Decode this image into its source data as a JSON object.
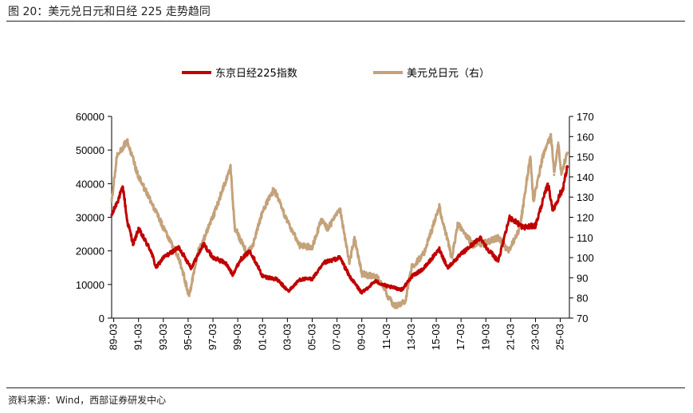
{
  "header": {
    "title": "图 20：美元兑日元和日经 225 走势趋同"
  },
  "footer": {
    "source": "资料来源：Wind，西部证券研发中心"
  },
  "chart_data": {
    "type": "line",
    "title": "图 20：美元兑日元和日经 225 走势趋同",
    "x_tick_labels": [
      "89-03",
      "91-03",
      "93-03",
      "95-03",
      "97-03",
      "99-03",
      "01-03",
      "03-03",
      "05-03",
      "07-03",
      "09-03",
      "11-03",
      "13-03",
      "15-03",
      "17-03",
      "19-03",
      "21-03",
      "23-03",
      "25-03"
    ],
    "y_left": {
      "range": [
        0,
        60000
      ],
      "ticks": [
        0,
        10000,
        20000,
        30000,
        40000,
        50000,
        60000
      ]
    },
    "y_right": {
      "range": [
        70,
        170
      ],
      "ticks": [
        70,
        80,
        90,
        100,
        110,
        120,
        130,
        140,
        150,
        160,
        170
      ]
    },
    "grid": false,
    "legend_position": "top",
    "series": [
      {
        "name": "东京日经225指数",
        "axis": "left",
        "color": "#c00000",
        "points": [
          [
            "1989-01",
            30500
          ],
          [
            "1989-12",
            38900
          ],
          [
            "1990-04",
            29000
          ],
          [
            "1990-10",
            22000
          ],
          [
            "1991-03",
            26500
          ],
          [
            "1992-03",
            20000
          ],
          [
            "1992-08",
            15000
          ],
          [
            "1993-03",
            18000
          ],
          [
            "1994-06",
            21000
          ],
          [
            "1995-06",
            15000
          ],
          [
            "1996-06",
            22000
          ],
          [
            "1997-03",
            18000
          ],
          [
            "1998-03",
            16500
          ],
          [
            "1998-10",
            13000
          ],
          [
            "1999-06",
            17500
          ],
          [
            "2000-03",
            20000
          ],
          [
            "2001-03",
            12500
          ],
          [
            "2002-05",
            11500
          ],
          [
            "2003-04",
            8000
          ],
          [
            "2004-03",
            11500
          ],
          [
            "2005-03",
            11700
          ],
          [
            "2006-03",
            16500
          ],
          [
            "2007-06",
            18000
          ],
          [
            "2008-03",
            12500
          ],
          [
            "2009-03",
            7500
          ],
          [
            "2010-04",
            11000
          ],
          [
            "2011-03",
            9500
          ],
          [
            "2012-06",
            8500
          ],
          [
            "2013-03",
            12300
          ],
          [
            "2014-03",
            14800
          ],
          [
            "2015-06",
            20500
          ],
          [
            "2016-02",
            15000
          ],
          [
            "2017-03",
            19000
          ],
          [
            "2018-10",
            24000
          ],
          [
            "2019-03",
            21200
          ],
          [
            "2020-03",
            17000
          ],
          [
            "2021-02",
            30000
          ],
          [
            "2022-03",
            27000
          ],
          [
            "2023-03",
            27500
          ],
          [
            "2024-03",
            40000
          ],
          [
            "2024-08",
            32000
          ],
          [
            "2025-03",
            37000
          ],
          [
            "2025-05",
            38000
          ],
          [
            "2025-10",
            45000
          ]
        ]
      },
      {
        "name": "美元兑日元（右）",
        "axis": "right",
        "color": "#c4a27a",
        "points": [
          [
            "1989-01",
            128
          ],
          [
            "1989-06",
            150
          ],
          [
            "1990-04",
            158
          ],
          [
            "1991-03",
            140
          ],
          [
            "1992-03",
            128
          ],
          [
            "1993-03",
            115
          ],
          [
            "1994-06",
            100
          ],
          [
            "1995-04",
            81
          ],
          [
            "1995-12",
            102
          ],
          [
            "1996-06",
            109
          ],
          [
            "1997-03",
            120
          ],
          [
            "1998-08",
            145
          ],
          [
            "1998-12",
            115
          ],
          [
            "1999-12",
            102
          ],
          [
            "2000-06",
            107
          ],
          [
            "2001-03",
            123
          ],
          [
            "2002-02",
            134
          ],
          [
            "2003-03",
            118
          ],
          [
            "2004-03",
            106
          ],
          [
            "2005-03",
            105
          ],
          [
            "2005-12",
            119
          ],
          [
            "2006-06",
            114
          ],
          [
            "2007-06",
            124
          ],
          [
            "2008-03",
            97
          ],
          [
            "2008-08",
            110
          ],
          [
            "2009-03",
            92
          ],
          [
            "2010-06",
            90
          ],
          [
            "2011-03",
            82
          ],
          [
            "2011-10",
            76
          ],
          [
            "2012-09",
            78
          ],
          [
            "2013-03",
            95
          ],
          [
            "2014-03",
            102
          ],
          [
            "2015-06",
            125
          ],
          [
            "2016-06",
            100
          ],
          [
            "2016-12",
            117
          ],
          [
            "2018-03",
            106
          ],
          [
            "2019-06",
            108
          ],
          [
            "2020-03",
            110
          ],
          [
            "2021-01",
            103
          ],
          [
            "2021-12",
            115
          ],
          [
            "2022-10",
            150
          ],
          [
            "2023-01",
            128
          ],
          [
            "2023-10",
            150
          ],
          [
            "2024-06",
            161
          ],
          [
            "2024-09",
            141
          ],
          [
            "2025-01",
            157
          ],
          [
            "2025-04",
            142
          ],
          [
            "2025-10",
            152
          ]
        ]
      }
    ]
  }
}
